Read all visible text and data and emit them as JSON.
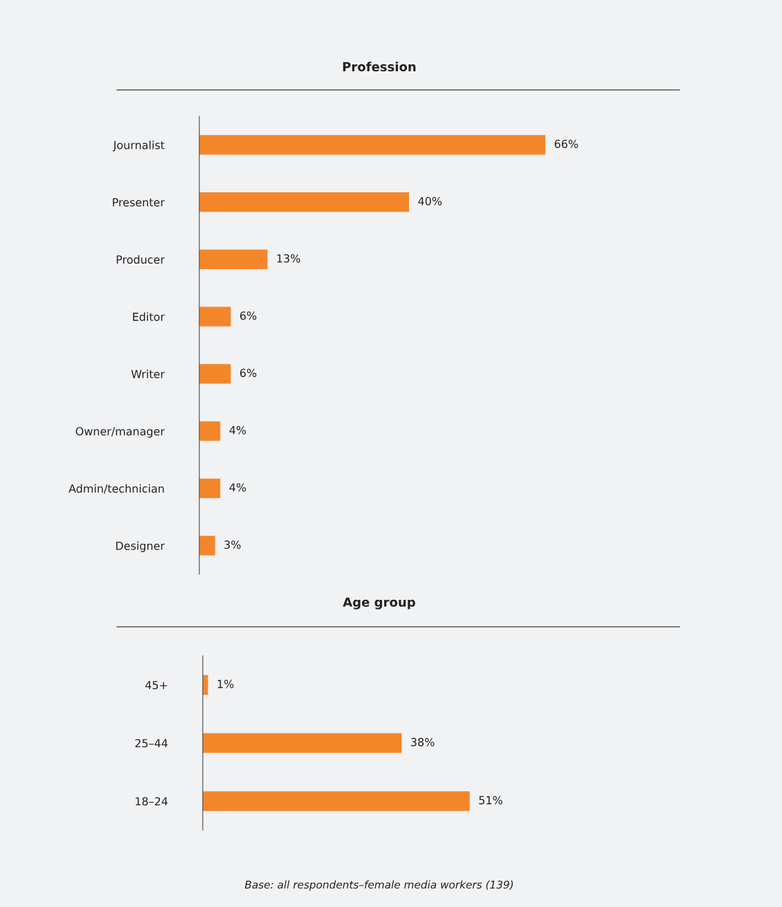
{
  "chart_data": [
    {
      "type": "bar",
      "orientation": "horizontal",
      "title": "Profession",
      "categories": [
        "Journalist",
        "Presenter",
        "Producer",
        "Editor",
        "Writer",
        "Owner/manager",
        "Admin/technician",
        "Designer"
      ],
      "values": [
        66,
        40,
        13,
        6,
        6,
        4,
        4,
        3
      ],
      "value_labels": [
        "66%",
        "40%",
        "13%",
        "6%",
        "6%",
        "4%",
        "4%",
        "3%"
      ],
      "color": "#f4862a",
      "tick_labels": "y",
      "grid": false,
      "legend": false
    },
    {
      "type": "bar",
      "orientation": "horizontal",
      "title": "Age group",
      "categories": [
        "45+",
        "25–44",
        "18–24"
      ],
      "values": [
        1,
        38,
        51
      ],
      "value_labels": [
        "1%",
        "38%",
        "51%"
      ],
      "color": "#f4862a",
      "tick_labels": "y",
      "grid": false,
      "legend": false,
      "annotations": [
        "Base: all respondents–female media workers (139)"
      ]
    }
  ]
}
